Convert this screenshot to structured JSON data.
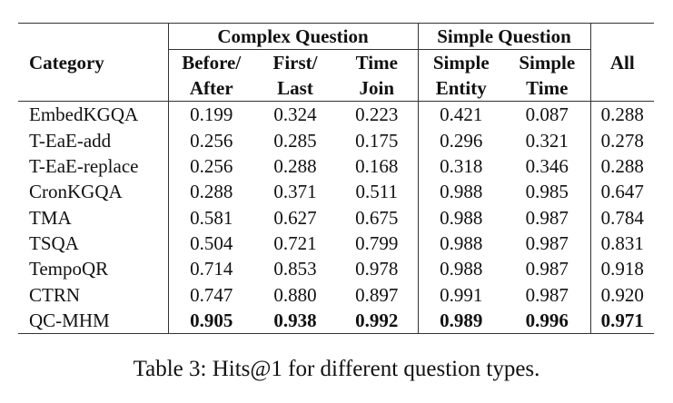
{
  "table": {
    "header": {
      "first": "Category",
      "groups": [
        "Complex Question",
        "Simple Question"
      ],
      "columns": [
        [
          "Before/",
          "After"
        ],
        [
          "First/",
          "Last"
        ],
        [
          "Time",
          "Join"
        ],
        [
          "Simple",
          "Entity"
        ],
        [
          "Simple",
          "Time"
        ]
      ],
      "last": "All"
    },
    "rows": [
      [
        "EmbedKGQA",
        "0.199",
        "0.324",
        "0.223",
        "0.421",
        "0.087",
        "0.288"
      ],
      [
        "T-EaE-add",
        "0.256",
        "0.285",
        "0.175",
        "0.296",
        "0.321",
        "0.278"
      ],
      [
        "T-EaE-replace",
        "0.256",
        "0.288",
        "0.168",
        "0.318",
        "0.346",
        "0.288"
      ],
      [
        "CronKGQA",
        "0.288",
        "0.371",
        "0.511",
        "0.988",
        "0.985",
        "0.647"
      ],
      [
        "TMA",
        "0.581",
        "0.627",
        "0.675",
        "0.988",
        "0.987",
        "0.784"
      ],
      [
        "TSQA",
        "0.504",
        "0.721",
        "0.799",
        "0.988",
        "0.987",
        "0.831"
      ],
      [
        "TempoQR",
        "0.714",
        "0.853",
        "0.978",
        "0.988",
        "0.987",
        "0.918"
      ],
      [
        "CTRN",
        "0.747",
        "0.880",
        "0.897",
        "0.991",
        "0.987",
        "0.920"
      ],
      [
        "QC-MHM",
        "0.905",
        "0.938",
        "0.992",
        "0.989",
        "0.996",
        "0.971"
      ]
    ]
  },
  "caption": "Table 3: Hits@1 for different question types."
}
